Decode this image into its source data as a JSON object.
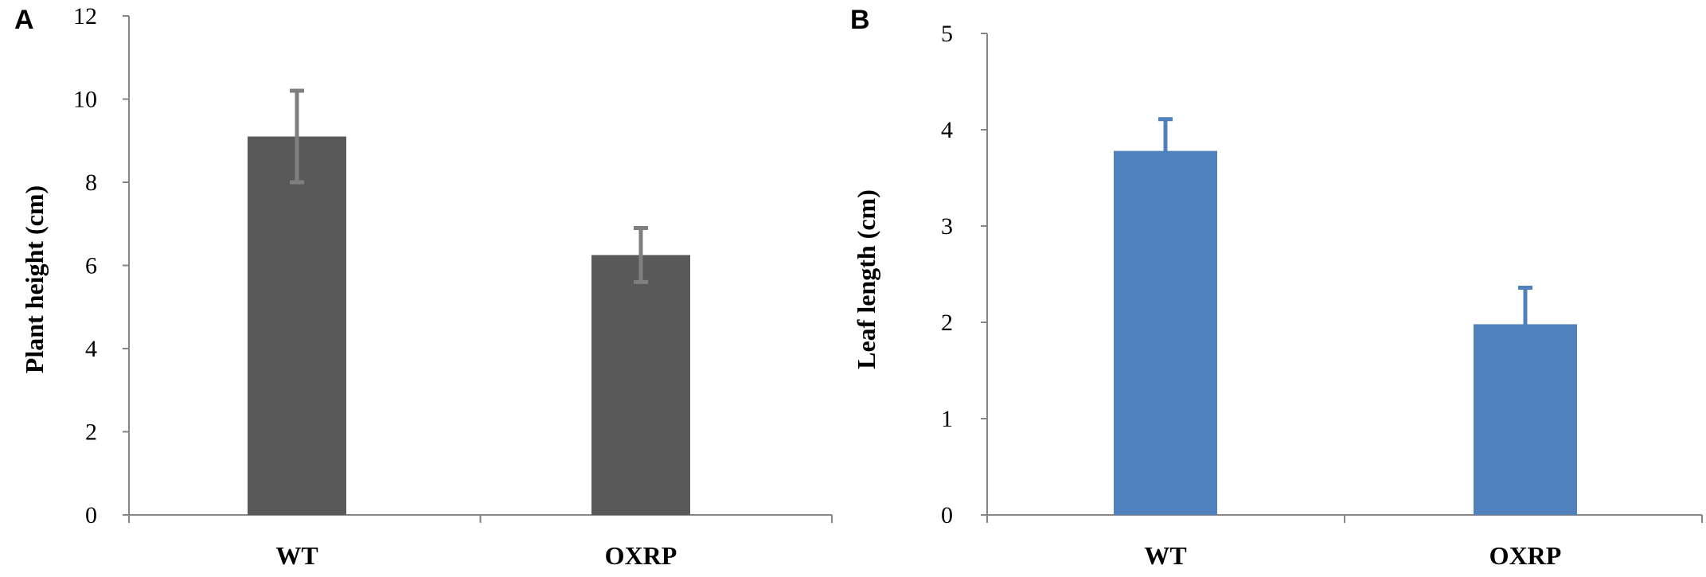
{
  "chart_data": [
    {
      "type": "bar",
      "panel_label": "A",
      "categories": [
        "WT",
        "OXRP"
      ],
      "values": [
        9.1,
        6.25
      ],
      "errors": [
        1.1,
        0.65
      ],
      "ylabel": "Plant height (cm)",
      "xlabel": "",
      "ylim": [
        0,
        12
      ],
      "yticks": [
        "0",
        "2",
        "4",
        "6",
        "8",
        "10",
        "12"
      ],
      "bar_color": "#595959",
      "error_color": "#7f7f7f",
      "grid": false,
      "legend": "none"
    },
    {
      "type": "bar",
      "panel_label": "B",
      "categories": [
        "WT",
        "OXRP"
      ],
      "values": [
        3.78,
        1.98
      ],
      "errors": [
        0.33,
        0.38
      ],
      "ylabel": "Leaf length (cm)",
      "xlabel": "",
      "ylim": [
        0,
        5
      ],
      "yticks": [
        "0",
        "1",
        "2",
        "3",
        "4",
        "5"
      ],
      "bar_color": "#4f81bd",
      "error_color": "#4f81bd",
      "grid": false,
      "legend": "none"
    }
  ]
}
